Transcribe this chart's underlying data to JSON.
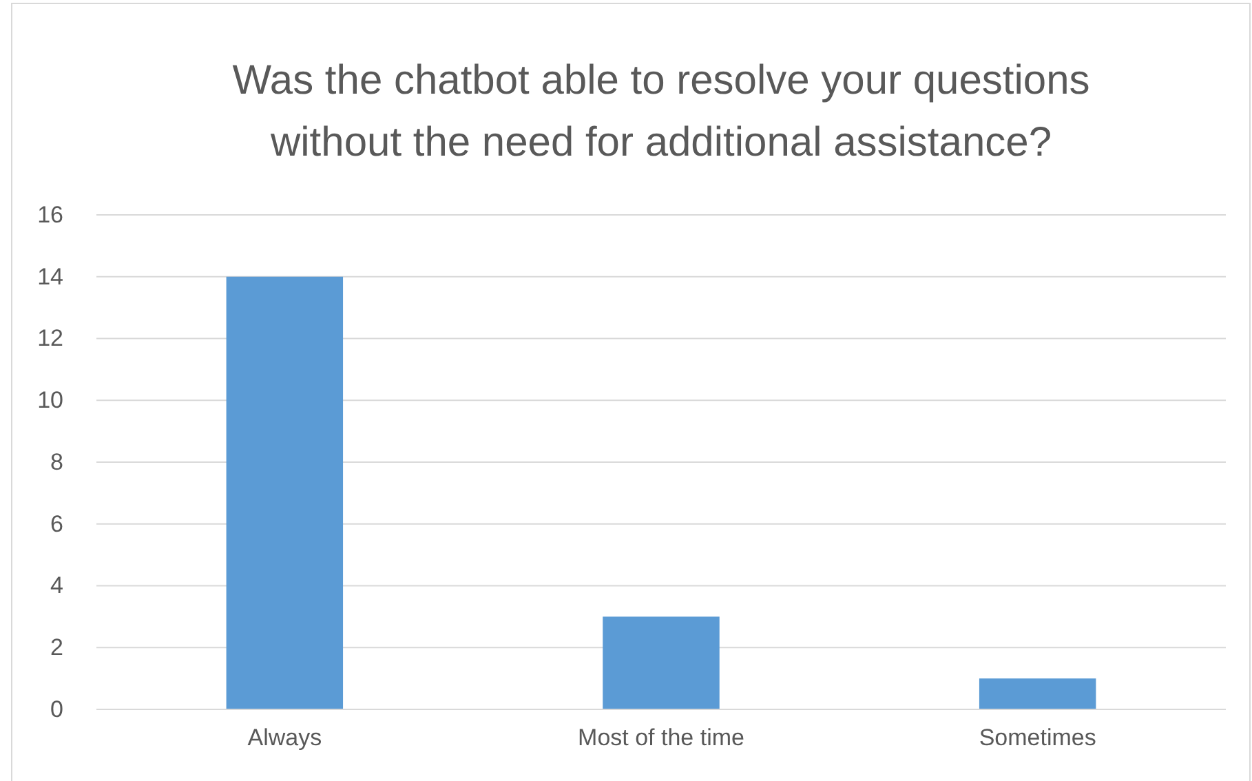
{
  "chart_data": {
    "type": "bar",
    "title": "Was the chatbot able to resolve your questions without the need for additional assistance?",
    "categories": [
      "Always",
      "Most of the time",
      "Sometimes"
    ],
    "values": [
      14,
      3,
      1
    ],
    "color": "#5b9bd5",
    "ylim": [
      0,
      16
    ],
    "yticks": [
      0,
      2,
      4,
      6,
      8,
      10,
      12,
      14,
      16
    ],
    "grid": "y"
  }
}
